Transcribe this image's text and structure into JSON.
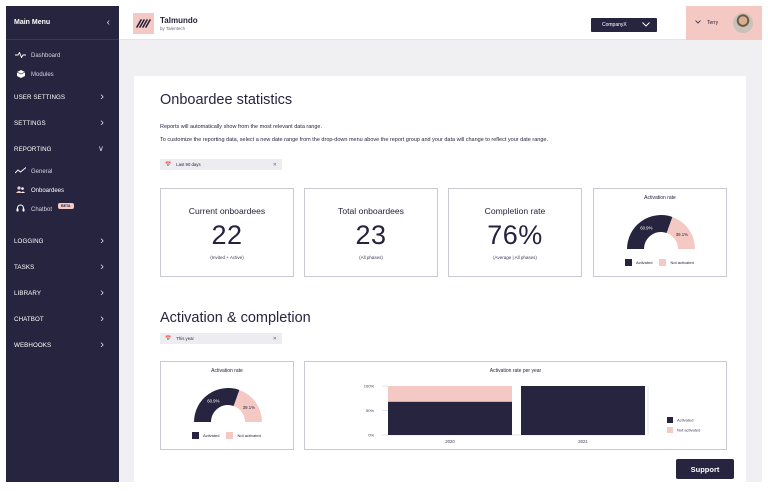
{
  "sidebar": {
    "title": "Main Menu",
    "items": [
      {
        "label": "Dashboard",
        "icon": "pulse-icon"
      },
      {
        "label": "Modules",
        "icon": "cube-icon"
      },
      {
        "label": "USER SETTINGS"
      },
      {
        "label": "SETTINGS"
      },
      {
        "label": "REPORTING"
      },
      {
        "label": "General",
        "icon": "trend-icon"
      },
      {
        "label": "Onboardees",
        "icon": "users-icon"
      },
      {
        "label": "Chatbot",
        "icon": "headset-icon",
        "badge": "BETA"
      },
      {
        "label": "LOGGING"
      },
      {
        "label": "TASKS"
      },
      {
        "label": "LIBRARY"
      },
      {
        "label": "CHATBOT"
      },
      {
        "label": "WEBHOOKS"
      }
    ]
  },
  "header": {
    "brand": "Talmundo",
    "brand_sub": "by Talentech",
    "company": "CompanyX",
    "user": "Terry"
  },
  "colors": {
    "dark": "#27243f",
    "pink": "#f4c9c3",
    "background": "#f0f0f3"
  },
  "onboardee": {
    "title": "Onboardee statistics",
    "desc1": "Reports will automatically show from the most relevant data range.",
    "desc2": "To customize the reporting data, select a new date range from the drop-down menu above the report group and your data will change to reflect your date range.",
    "filter": "Last 90 days"
  },
  "stats": [
    {
      "label": "Current onboardees",
      "value": "22",
      "sub": "(Invited + Active)"
    },
    {
      "label": "Total onboardees",
      "value": "23",
      "sub": "(All phases)"
    },
    {
      "label": "Completion rate",
      "value": "76%",
      "sub": "(Average | All phases)"
    }
  ],
  "activation_gauge": {
    "title": "Activation rate",
    "activated_label": "60.9%",
    "not_activated_label": "39.1%",
    "legend_activated": "Activated",
    "legend_not_activated": "Not activated"
  },
  "activation": {
    "title": "Activation & completion",
    "filter": "This year",
    "year_chart_title": "Activation rate per year"
  },
  "support_label": "Support",
  "chart_data": [
    {
      "type": "pie",
      "title": "Activation rate",
      "categories": [
        "Activated",
        "Not activated"
      ],
      "values": [
        60.9,
        39.1
      ]
    },
    {
      "type": "pie",
      "title": "Activation rate",
      "categories": [
        "Activated",
        "Not activated"
      ],
      "values": [
        60.9,
        39.1
      ]
    },
    {
      "type": "bar",
      "stacked": true,
      "title": "Activation rate per year",
      "categories": [
        "2020",
        "2021"
      ],
      "series": [
        {
          "name": "Activated",
          "values": [
            68,
            100
          ],
          "color": "#27243f"
        },
        {
          "name": "Not activated",
          "values": [
            32,
            0
          ],
          "color": "#f4c9c3"
        }
      ],
      "yticks": [
        "0%",
        "50%",
        "100%"
      ],
      "ylim": [
        0,
        100
      ],
      "legend": "right"
    }
  ]
}
